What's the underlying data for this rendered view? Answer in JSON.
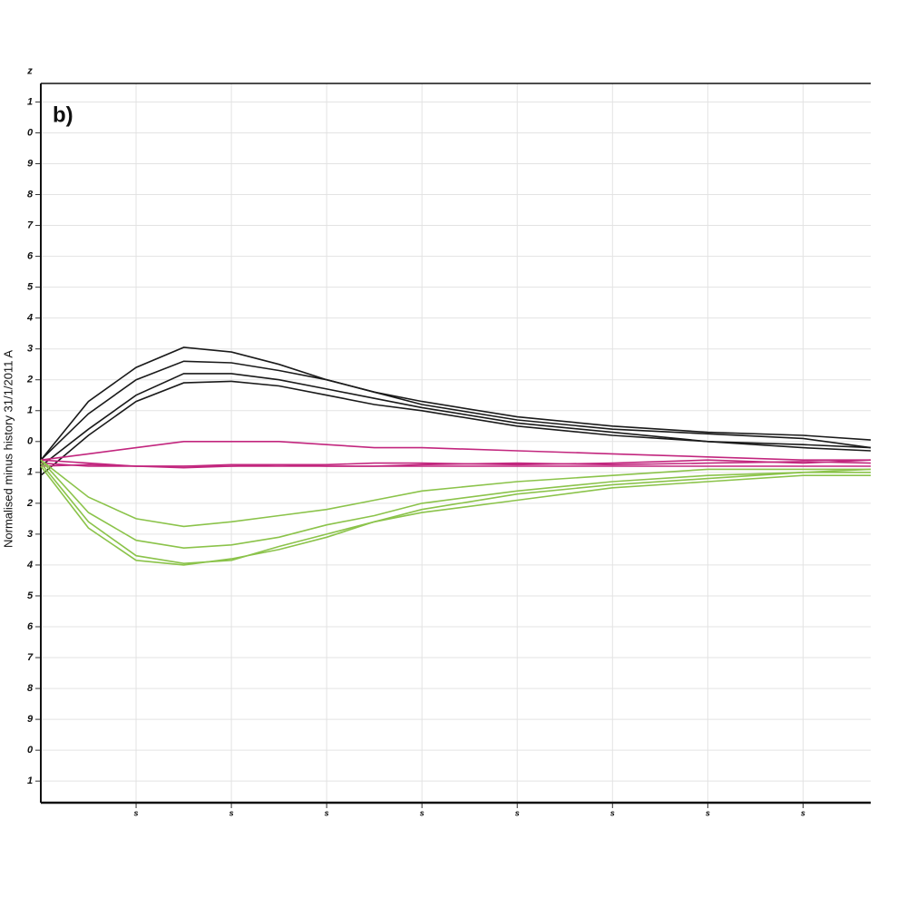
{
  "chart_data": {
    "type": "line",
    "annotation": "b)",
    "y_label": "Normalised minus history 31/1/2011 A",
    "x": [
      0,
      0.5,
      1,
      1.5,
      2,
      2.5,
      3,
      3.5,
      4,
      5,
      6,
      7,
      8,
      8.71
    ],
    "series": [
      {
        "color": "#1a1a1a",
        "values": [
          -0.6,
          1.3,
          2.4,
          3.05,
          2.9,
          2.5,
          2.0,
          1.6,
          1.2,
          0.7,
          0.4,
          0.25,
          0.1,
          -0.2
        ]
      },
      {
        "color": "#1a1a1a",
        "values": [
          -0.6,
          0.9,
          2.0,
          2.6,
          2.55,
          2.3,
          2.0,
          1.6,
          1.3,
          0.8,
          0.5,
          0.3,
          0.2,
          0.05
        ]
      },
      {
        "color": "#1a1a1a",
        "values": [
          -0.8,
          0.4,
          1.5,
          2.2,
          2.2,
          2.0,
          1.7,
          1.4,
          1.1,
          0.6,
          0.3,
          0.0,
          -0.1,
          -0.2
        ]
      },
      {
        "color": "#1a1a1a",
        "values": [
          -1.1,
          0.2,
          1.3,
          1.9,
          1.95,
          1.8,
          1.5,
          1.2,
          1.0,
          0.5,
          0.2,
          0.0,
          -0.2,
          -0.3
        ]
      },
      {
        "color": "#c2267e",
        "values": [
          -0.6,
          -0.4,
          -0.2,
          0.0,
          0.0,
          0.0,
          -0.1,
          -0.2,
          -0.2,
          -0.3,
          -0.4,
          -0.5,
          -0.6,
          -0.6
        ]
      },
      {
        "color": "#c2267e",
        "values": [
          -0.6,
          -0.7,
          -0.8,
          -0.8,
          -0.75,
          -0.75,
          -0.75,
          -0.7,
          -0.7,
          -0.75,
          -0.7,
          -0.6,
          -0.7,
          -0.6
        ]
      },
      {
        "color": "#c2267e",
        "values": [
          -0.7,
          -0.8,
          -0.8,
          -0.85,
          -0.8,
          -0.8,
          -0.8,
          -0.8,
          -0.75,
          -0.7,
          -0.75,
          -0.7,
          -0.65,
          -0.7
        ]
      },
      {
        "color": "#c2267e",
        "values": [
          -0.8,
          -0.75,
          -0.8,
          -0.8,
          -0.8,
          -0.75,
          -0.8,
          -0.8,
          -0.8,
          -0.8,
          -0.8,
          -0.8,
          -0.8,
          -0.8
        ]
      },
      {
        "color": "#8bc34a",
        "values": [
          -0.6,
          -1.8,
          -2.5,
          -2.75,
          -2.6,
          -2.4,
          -2.2,
          -1.9,
          -1.6,
          -1.3,
          -1.1,
          -0.9,
          -0.9,
          -0.9
        ]
      },
      {
        "color": "#8bc34a",
        "values": [
          -0.6,
          -2.3,
          -3.2,
          -3.45,
          -3.35,
          -3.1,
          -2.7,
          -2.4,
          -2.0,
          -1.6,
          -1.3,
          -1.1,
          -1.0,
          -0.9
        ]
      },
      {
        "color": "#8bc34a",
        "values": [
          -0.7,
          -2.6,
          -3.7,
          -3.95,
          -3.85,
          -3.4,
          -3.0,
          -2.6,
          -2.2,
          -1.7,
          -1.4,
          -1.2,
          -1.0,
          -1.0
        ]
      },
      {
        "color": "#8bc34a",
        "values": [
          -0.8,
          -2.8,
          -3.85,
          -4.0,
          -3.8,
          -3.5,
          -3.1,
          -2.6,
          -2.3,
          -1.9,
          -1.5,
          -1.3,
          -1.1,
          -1.1
        ]
      }
    ],
    "xlim": [
      0,
      8.71
    ],
    "xticks": [
      {
        "value": 1,
        "label": "s"
      },
      {
        "value": 2,
        "label": "s"
      },
      {
        "value": 3,
        "label": "s"
      },
      {
        "value": 4,
        "label": "s"
      },
      {
        "value": 5,
        "label": "s"
      },
      {
        "value": 6,
        "label": "s"
      },
      {
        "value": 7,
        "label": "s"
      },
      {
        "value": 8,
        "label": "s"
      }
    ],
    "ylim": [
      -11.7,
      11.6
    ],
    "yticks": [
      {
        "value": 12,
        "label": "z"
      },
      {
        "value": 11,
        "label": "1"
      },
      {
        "value": 10,
        "label": "0"
      },
      9,
      8,
      7,
      6,
      5,
      4,
      3,
      2,
      1,
      0,
      {
        "value": -1,
        "label": "1"
      },
      {
        "value": -2,
        "label": "2"
      },
      {
        "value": -3,
        "label": "3"
      },
      {
        "value": -4,
        "label": "4"
      },
      {
        "value": -5,
        "label": "5"
      },
      {
        "value": -6,
        "label": "6"
      },
      {
        "value": -7,
        "label": "7"
      },
      {
        "value": -8,
        "label": "8"
      },
      {
        "value": -9,
        "label": "9"
      },
      {
        "value": -10,
        "label": "0"
      },
      {
        "value": -11,
        "label": "1"
      }
    ],
    "grid": true
  }
}
